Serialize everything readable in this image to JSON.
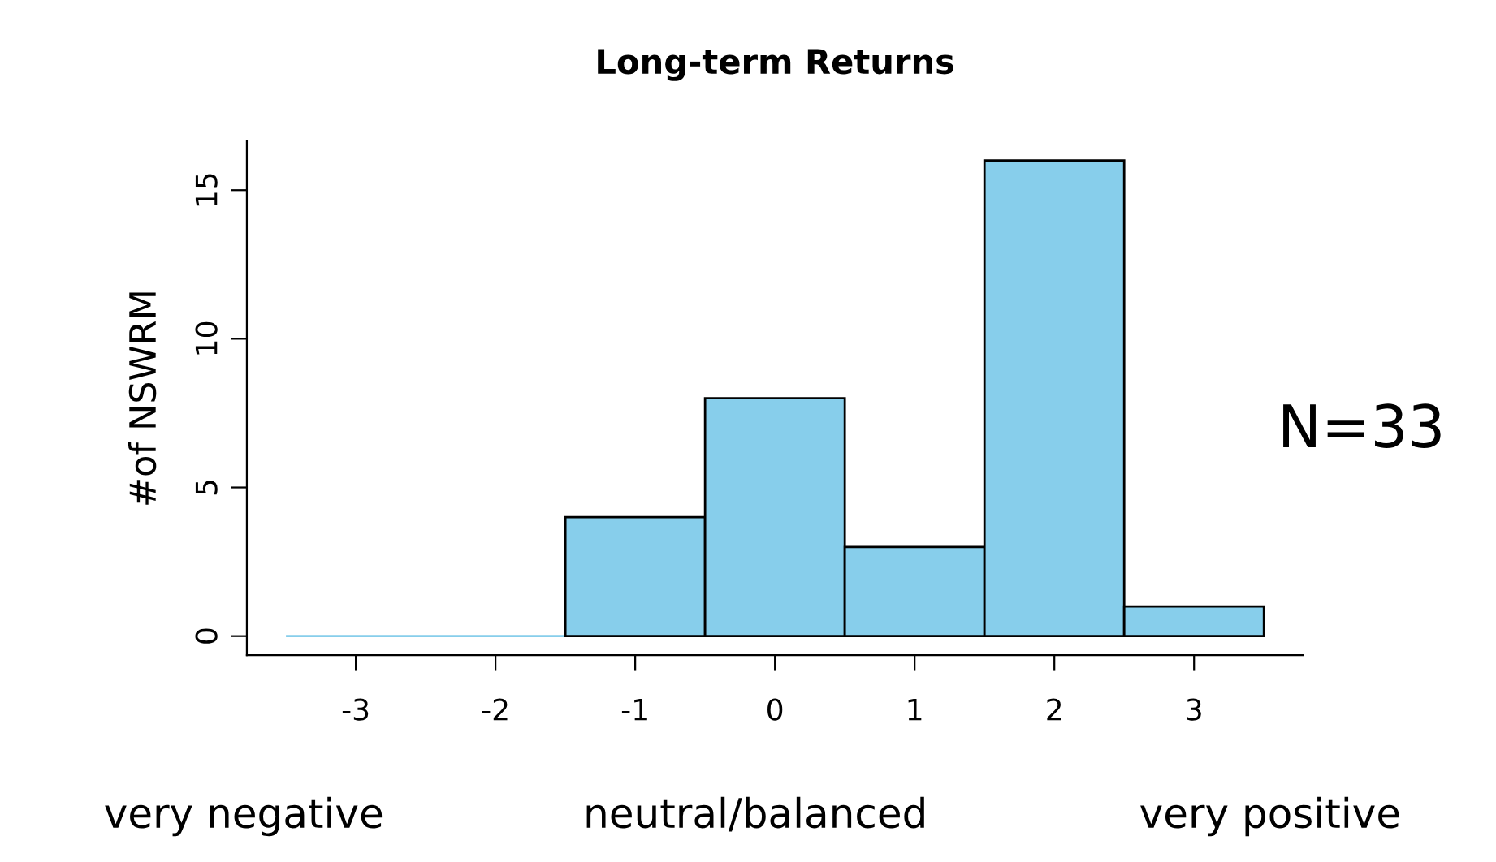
{
  "chart_data": {
    "type": "histogram",
    "title": "Long-term Returns",
    "ylabel": "#of NSWRM",
    "bins": [
      -3.5,
      -2.5,
      -1.5,
      -0.5,
      0.5,
      1.5,
      2.5,
      3.5
    ],
    "values": [
      0,
      0,
      4,
      8,
      3,
      16,
      1
    ],
    "color": "#87ceeb",
    "xlim": [
      -3.78,
      3.78
    ],
    "ylim": [
      -0.64,
      16.64
    ],
    "xticks": [
      -3,
      -2,
      -1,
      0,
      1,
      2,
      3
    ],
    "yticks": [
      0,
      5,
      10,
      15
    ],
    "annotations": [
      "very negative",
      "neutral/balanced",
      "very positive",
      "N=33"
    ]
  }
}
